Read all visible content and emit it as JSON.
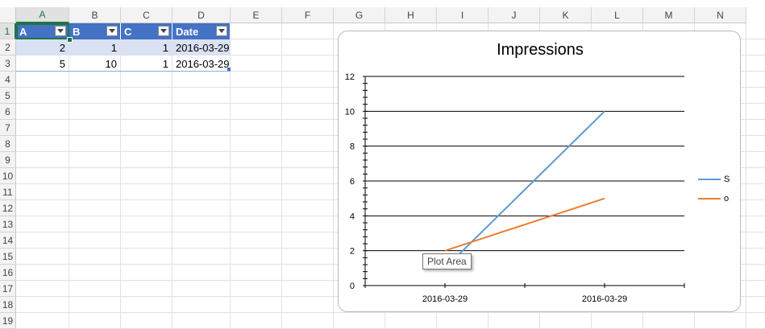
{
  "columns": [
    "A",
    "B",
    "C",
    "D",
    "E",
    "F",
    "G",
    "H",
    "I",
    "J",
    "K",
    "L",
    "M",
    "N"
  ],
  "rows": [
    "1",
    "2",
    "3",
    "4",
    "5",
    "6",
    "7",
    "8",
    "9",
    "10",
    "11",
    "12",
    "13",
    "14",
    "15",
    "16",
    "17",
    "18",
    "19"
  ],
  "table": {
    "headers": [
      "A",
      "B",
      "C",
      "Date"
    ],
    "rows": [
      [
        "2",
        "1",
        "1",
        "2016-03-29"
      ],
      [
        "5",
        "10",
        "1",
        "2016-03-29"
      ]
    ]
  },
  "colors": {
    "table_header": "#4472c4",
    "band": "#d9e1f2",
    "series_s": "#5b9bd5",
    "series_o": "#ed7d31",
    "selection": "#217346"
  },
  "tooltip": "Plot Area",
  "chart_data": {
    "type": "line",
    "title": "Impressions",
    "categories": [
      "2016-03-29",
      "2016-03-29"
    ],
    "series": [
      {
        "name": "S",
        "values": [
          1,
          10
        ]
      },
      {
        "name": "o",
        "values": [
          2,
          5
        ]
      }
    ],
    "ylim": [
      0,
      12
    ],
    "yticks": [
      "0",
      "2",
      "4",
      "6",
      "8",
      "10",
      "12"
    ],
    "grid": true,
    "legend": "right"
  }
}
